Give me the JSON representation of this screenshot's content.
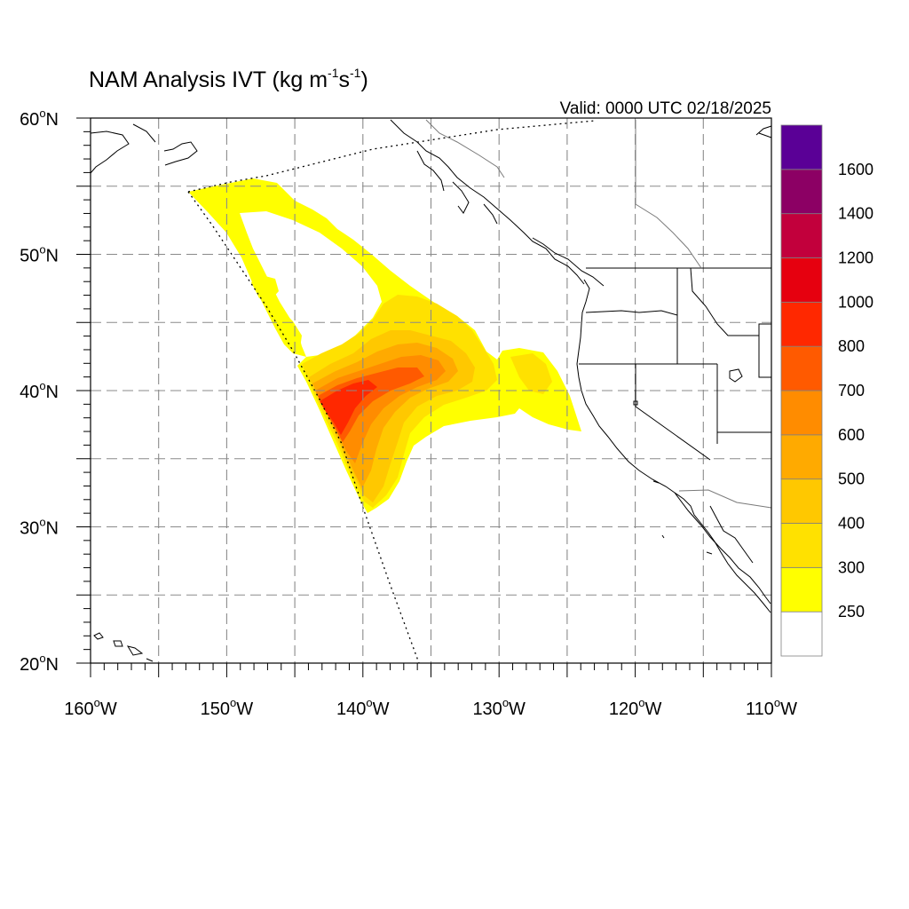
{
  "title_main": "NAM Analysis IVT (kg m",
  "title_sup1": "-1",
  "title_mid": "s",
  "title_sup2": "-1",
  "title_end": ")",
  "valid": "Valid: 0000 UTC 02/18/2025",
  "lat_labels": [
    {
      "deg": "60",
      "sup": "o",
      "hemi": "N",
      "value": 60
    },
    {
      "deg": "50",
      "sup": "o",
      "hemi": "N",
      "value": 50
    },
    {
      "deg": "40",
      "sup": "o",
      "hemi": "N",
      "value": 40
    },
    {
      "deg": "30",
      "sup": "o",
      "hemi": "N",
      "value": 30
    },
    {
      "deg": "20",
      "sup": "o",
      "hemi": "N",
      "value": 20
    }
  ],
  "lon_labels": [
    {
      "deg": "160",
      "sup": "o",
      "hemi": "W",
      "value": -160
    },
    {
      "deg": "150",
      "sup": "o",
      "hemi": "W",
      "value": -150
    },
    {
      "deg": "140",
      "sup": "o",
      "hemi": "W",
      "value": -140
    },
    {
      "deg": "130",
      "sup": "o",
      "hemi": "W",
      "value": -130
    },
    {
      "deg": "120",
      "sup": "o",
      "hemi": "W",
      "value": -120
    },
    {
      "deg": "110",
      "sup": "o",
      "hemi": "W",
      "value": -110
    }
  ],
  "map_extent": {
    "lon_min": -160,
    "lon_max": -110,
    "lat_min": 20,
    "lat_max": 60
  },
  "colorbar": {
    "levels": [
      "250",
      "300",
      "400",
      "500",
      "600",
      "700",
      "800",
      "1000",
      "1200",
      "1400",
      "1600"
    ],
    "colors": [
      "#ffffff",
      "#ffff00",
      "#ffe100",
      "#ffc800",
      "#ffaa00",
      "#ff8c00",
      "#ff5a00",
      "#ff2800",
      "#e6000f",
      "#c2003c",
      "#8c0064",
      "#5a0096"
    ]
  },
  "ivt_shading": [
    {
      "level": 250,
      "color": "#ffff00"
    },
    {
      "level": 300,
      "color": "#ffe100"
    },
    {
      "level": 400,
      "color": "#ffc800"
    },
    {
      "level": 500,
      "color": "#ffaa00"
    },
    {
      "level": 600,
      "color": "#ff8c00"
    },
    {
      "level": 700,
      "color": "#ff5a00"
    },
    {
      "level": 800,
      "color": "#ff2800"
    }
  ]
}
